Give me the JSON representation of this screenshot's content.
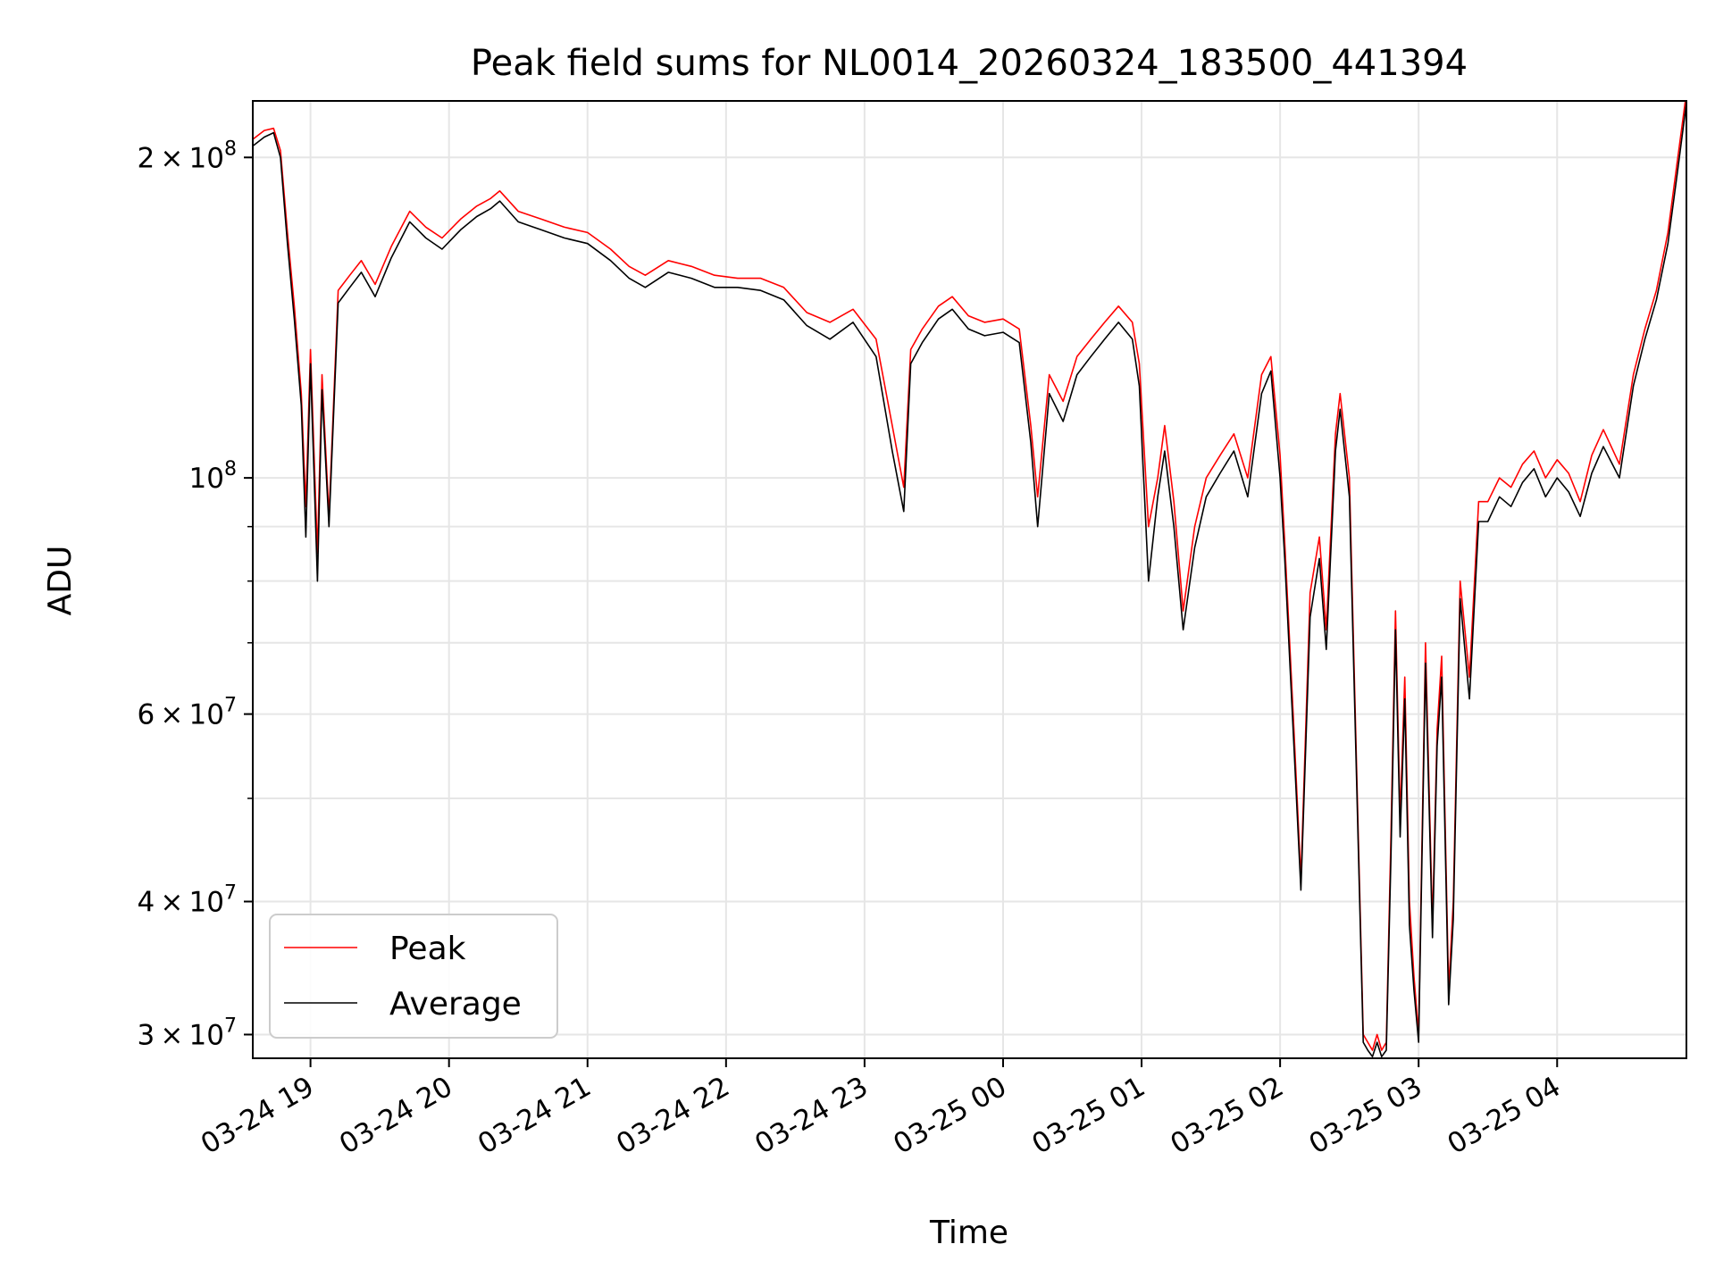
{
  "chart_data": {
    "type": "line",
    "title": "Peak field sums for NL0014_20260324_183500_441394",
    "xlabel": "Time",
    "ylabel": "ADU",
    "yscale": "log",
    "xlim": [
      "2026-03-24 18:35",
      "2026-03-25 04:56"
    ],
    "ylim": [
      28500000,
      226000000
    ],
    "grid": true,
    "legend": {
      "position": "lower-left",
      "entries": [
        "Peak",
        "Average"
      ]
    },
    "x_ticks": [
      "03-24 19",
      "03-24 20",
      "03-24 21",
      "03-24 22",
      "03-24 23",
      "03-25 00",
      "03-25 01",
      "03-25 02",
      "03-25 03",
      "03-25 04"
    ],
    "y_ticks": [
      {
        "value": 30000000,
        "mant": "3",
        "exp": "7"
      },
      {
        "value": 40000000,
        "mant": "4",
        "exp": "7"
      },
      {
        "value": 60000000,
        "mant": "6",
        "exp": "7"
      },
      {
        "value": 100000000,
        "mant": "",
        "exp": "8"
      },
      {
        "value": 200000000,
        "mant": "2",
        "exp": "8"
      }
    ],
    "colors": {
      "Peak": "#ff0000",
      "Average": "#000000"
    },
    "series": [
      {
        "name": "Peak",
        "x": [
          "2026-03-24 18:35",
          "2026-03-24 18:40",
          "2026-03-24 18:44",
          "2026-03-24 18:47",
          "2026-03-24 18:50",
          "2026-03-24 18:53",
          "2026-03-24 18:56",
          "2026-03-24 18:58",
          "2026-03-24 19:00",
          "2026-03-24 19:03",
          "2026-03-24 19:05",
          "2026-03-24 19:08",
          "2026-03-24 19:12",
          "2026-03-24 19:17",
          "2026-03-24 19:22",
          "2026-03-24 19:28",
          "2026-03-24 19:35",
          "2026-03-24 19:43",
          "2026-03-24 19:50",
          "2026-03-24 19:57",
          "2026-03-24 20:05",
          "2026-03-24 20:12",
          "2026-03-24 20:18",
          "2026-03-24 20:22",
          "2026-03-24 20:30",
          "2026-03-24 20:40",
          "2026-03-24 20:50",
          "2026-03-24 21:00",
          "2026-03-24 21:10",
          "2026-03-24 21:18",
          "2026-03-24 21:25",
          "2026-03-24 21:35",
          "2026-03-24 21:45",
          "2026-03-24 21:55",
          "2026-03-24 22:05",
          "2026-03-24 22:15",
          "2026-03-24 22:25",
          "2026-03-24 22:35",
          "2026-03-24 22:45",
          "2026-03-24 22:55",
          "2026-03-24 23:05",
          "2026-03-24 23:12",
          "2026-03-24 23:17",
          "2026-03-24 23:20",
          "2026-03-24 23:25",
          "2026-03-24 23:32",
          "2026-03-24 23:38",
          "2026-03-24 23:45",
          "2026-03-24 23:52",
          "2026-03-25 00:00",
          "2026-03-25 00:07",
          "2026-03-25 00:12",
          "2026-03-25 00:15",
          "2026-03-25 00:20",
          "2026-03-25 00:26",
          "2026-03-25 00:32",
          "2026-03-25 00:38",
          "2026-03-25 00:44",
          "2026-03-25 00:50",
          "2026-03-25 00:56",
          "2026-03-25 00:59",
          "2026-03-25 01:03",
          "2026-03-25 01:07",
          "2026-03-25 01:10",
          "2026-03-25 01:14",
          "2026-03-25 01:18",
          "2026-03-25 01:23",
          "2026-03-25 01:28",
          "2026-03-25 01:34",
          "2026-03-25 01:40",
          "2026-03-25 01:46",
          "2026-03-25 01:52",
          "2026-03-25 01:56",
          "2026-03-25 02:00",
          "2026-03-25 02:02",
          "2026-03-25 02:06",
          "2026-03-25 02:09",
          "2026-03-25 02:13",
          "2026-03-25 02:17",
          "2026-03-25 02:20",
          "2026-03-25 02:24",
          "2026-03-25 02:26",
          "2026-03-25 02:30",
          "2026-03-25 02:36",
          "2026-03-25 02:38",
          "2026-03-25 02:40",
          "2026-03-25 02:42",
          "2026-03-25 02:44",
          "2026-03-25 02:46",
          "2026-03-25 02:48",
          "2026-03-25 02:50",
          "2026-03-25 02:52",
          "2026-03-25 02:54",
          "2026-03-25 02:56",
          "2026-03-25 02:58",
          "2026-03-25 03:00",
          "2026-03-25 03:03",
          "2026-03-25 03:06",
          "2026-03-25 03:08",
          "2026-03-25 03:10",
          "2026-03-25 03:13",
          "2026-03-25 03:15",
          "2026-03-25 03:18",
          "2026-03-25 03:22",
          "2026-03-25 03:26",
          "2026-03-25 03:30",
          "2026-03-25 03:35",
          "2026-03-25 03:40",
          "2026-03-25 03:45",
          "2026-03-25 03:50",
          "2026-03-25 03:55",
          "2026-03-25 04:00",
          "2026-03-25 04:05",
          "2026-03-25 04:10",
          "2026-03-25 04:15",
          "2026-03-25 04:20",
          "2026-03-25 04:27",
          "2026-03-25 04:33",
          "2026-03-25 04:38",
          "2026-03-25 04:43",
          "2026-03-25 04:48",
          "2026-03-25 04:52",
          "2026-03-25 04:56"
        ],
        "values": [
          208000000,
          212000000,
          213000000,
          203000000,
          170000000,
          145000000,
          120000000,
          94000000,
          132000000,
          85000000,
          125000000,
          92000000,
          150000000,
          155000000,
          160000000,
          152000000,
          165000000,
          178000000,
          172000000,
          168000000,
          175000000,
          180000000,
          183000000,
          186000000,
          178000000,
          175000000,
          172000000,
          170000000,
          164000000,
          158000000,
          155000000,
          160000000,
          158000000,
          155000000,
          154000000,
          154000000,
          151000000,
          143000000,
          140000000,
          144000000,
          135000000,
          112000000,
          98000000,
          132000000,
          138000000,
          145000000,
          148000000,
          142000000,
          140000000,
          141000000,
          138000000,
          112000000,
          96000000,
          125000000,
          118000000,
          130000000,
          135000000,
          140000000,
          145000000,
          140000000,
          128000000,
          90000000,
          100000000,
          112000000,
          95000000,
          75000000,
          90000000,
          100000000,
          105000000,
          110000000,
          100000000,
          125000000,
          130000000,
          105000000,
          87000000,
          58000000,
          42000000,
          78000000,
          88000000,
          72000000,
          110000000,
          120000000,
          100000000,
          30000000,
          29500000,
          29000000,
          30000000,
          29000000,
          29500000,
          46000000,
          75000000,
          48000000,
          65000000,
          40000000,
          34000000,
          30000000,
          70000000,
          38000000,
          58000000,
          68000000,
          33000000,
          40000000,
          80000000,
          65000000,
          95000000,
          95000000,
          100000000,
          98000000,
          103000000,
          106000000,
          100000000,
          104000000,
          101000000,
          95000000,
          105000000,
          111000000,
          103000000,
          125000000,
          138000000,
          150000000,
          170000000,
          198000000,
          230000000
        ]
      },
      {
        "name": "Average",
        "x": [
          "2026-03-24 18:35",
          "2026-03-24 18:40",
          "2026-03-24 18:44",
          "2026-03-24 18:47",
          "2026-03-24 18:50",
          "2026-03-24 18:53",
          "2026-03-24 18:56",
          "2026-03-24 18:58",
          "2026-03-24 19:00",
          "2026-03-24 19:03",
          "2026-03-24 19:05",
          "2026-03-24 19:08",
          "2026-03-24 19:12",
          "2026-03-24 19:17",
          "2026-03-24 19:22",
          "2026-03-24 19:28",
          "2026-03-24 19:35",
          "2026-03-24 19:43",
          "2026-03-24 19:50",
          "2026-03-24 19:57",
          "2026-03-24 20:05",
          "2026-03-24 20:12",
          "2026-03-24 20:18",
          "2026-03-24 20:22",
          "2026-03-24 20:30",
          "2026-03-24 20:40",
          "2026-03-24 20:50",
          "2026-03-24 21:00",
          "2026-03-24 21:10",
          "2026-03-24 21:18",
          "2026-03-24 21:25",
          "2026-03-24 21:35",
          "2026-03-24 21:45",
          "2026-03-24 21:55",
          "2026-03-24 22:05",
          "2026-03-24 22:15",
          "2026-03-24 22:25",
          "2026-03-24 22:35",
          "2026-03-24 22:45",
          "2026-03-24 22:55",
          "2026-03-24 23:05",
          "2026-03-24 23:12",
          "2026-03-24 23:17",
          "2026-03-24 23:20",
          "2026-03-24 23:25",
          "2026-03-24 23:32",
          "2026-03-24 23:38",
          "2026-03-24 23:45",
          "2026-03-24 23:52",
          "2026-03-25 00:00",
          "2026-03-25 00:07",
          "2026-03-25 00:12",
          "2026-03-25 00:15",
          "2026-03-25 00:20",
          "2026-03-25 00:26",
          "2026-03-25 00:32",
          "2026-03-25 00:38",
          "2026-03-25 00:44",
          "2026-03-25 00:50",
          "2026-03-25 00:56",
          "2026-03-25 00:59",
          "2026-03-25 01:03",
          "2026-03-25 01:07",
          "2026-03-25 01:10",
          "2026-03-25 01:14",
          "2026-03-25 01:18",
          "2026-03-25 01:23",
          "2026-03-25 01:28",
          "2026-03-25 01:34",
          "2026-03-25 01:40",
          "2026-03-25 01:46",
          "2026-03-25 01:52",
          "2026-03-25 01:56",
          "2026-03-25 02:00",
          "2026-03-25 02:02",
          "2026-03-25 02:06",
          "2026-03-25 02:09",
          "2026-03-25 02:13",
          "2026-03-25 02:17",
          "2026-03-25 02:20",
          "2026-03-25 02:24",
          "2026-03-25 02:26",
          "2026-03-25 02:30",
          "2026-03-25 02:36",
          "2026-03-25 02:38",
          "2026-03-25 02:40",
          "2026-03-25 02:42",
          "2026-03-25 02:44",
          "2026-03-25 02:46",
          "2026-03-25 02:48",
          "2026-03-25 02:50",
          "2026-03-25 02:52",
          "2026-03-25 02:54",
          "2026-03-25 02:56",
          "2026-03-25 02:58",
          "2026-03-25 03:00",
          "2026-03-25 03:03",
          "2026-03-25 03:06",
          "2026-03-25 03:08",
          "2026-03-25 03:10",
          "2026-03-25 03:13",
          "2026-03-25 03:15",
          "2026-03-25 03:18",
          "2026-03-25 03:22",
          "2026-03-25 03:26",
          "2026-03-25 03:30",
          "2026-03-25 03:35",
          "2026-03-25 03:40",
          "2026-03-25 03:45",
          "2026-03-25 03:50",
          "2026-03-25 03:55",
          "2026-03-25 04:00",
          "2026-03-25 04:05",
          "2026-03-25 04:10",
          "2026-03-25 04:15",
          "2026-03-25 04:20",
          "2026-03-25 04:27",
          "2026-03-25 04:33",
          "2026-03-25 04:38",
          "2026-03-25 04:43",
          "2026-03-25 04:48",
          "2026-03-25 04:52",
          "2026-03-25 04:56"
        ],
        "values": [
          205000000,
          209000000,
          211000000,
          200000000,
          166000000,
          141000000,
          117000000,
          88000000,
          128000000,
          80000000,
          121000000,
          90000000,
          146000000,
          151000000,
          156000000,
          148000000,
          161000000,
          174000000,
          168000000,
          164000000,
          171000000,
          176000000,
          179000000,
          182000000,
          174000000,
          171000000,
          168000000,
          166000000,
          160000000,
          154000000,
          151000000,
          156000000,
          154000000,
          151000000,
          151000000,
          150000000,
          147000000,
          139000000,
          135000000,
          140000000,
          130000000,
          106000000,
          93000000,
          128000000,
          134000000,
          141000000,
          144000000,
          138000000,
          136000000,
          137000000,
          134000000,
          108000000,
          90000000,
          120000000,
          113000000,
          125000000,
          130000000,
          135000000,
          140000000,
          135000000,
          122000000,
          80000000,
          96000000,
          106000000,
          90000000,
          72000000,
          86000000,
          96000000,
          101000000,
          106000000,
          96000000,
          120000000,
          126000000,
          100000000,
          84000000,
          56000000,
          41000000,
          74000000,
          84000000,
          69000000,
          106000000,
          116000000,
          96000000,
          29500000,
          29000000,
          28600000,
          29500000,
          28600000,
          29000000,
          44000000,
          72000000,
          46000000,
          62000000,
          38000000,
          33000000,
          29500000,
          67000000,
          37000000,
          56000000,
          65000000,
          32000000,
          38500000,
          77000000,
          62000000,
          91000000,
          91000000,
          96000000,
          94000000,
          99000000,
          102000000,
          96000000,
          100000000,
          97000000,
          92000000,
          101000000,
          107000000,
          100000000,
          122000000,
          135000000,
          147000000,
          166000000,
          193000000,
          225000000
        ]
      }
    ]
  }
}
